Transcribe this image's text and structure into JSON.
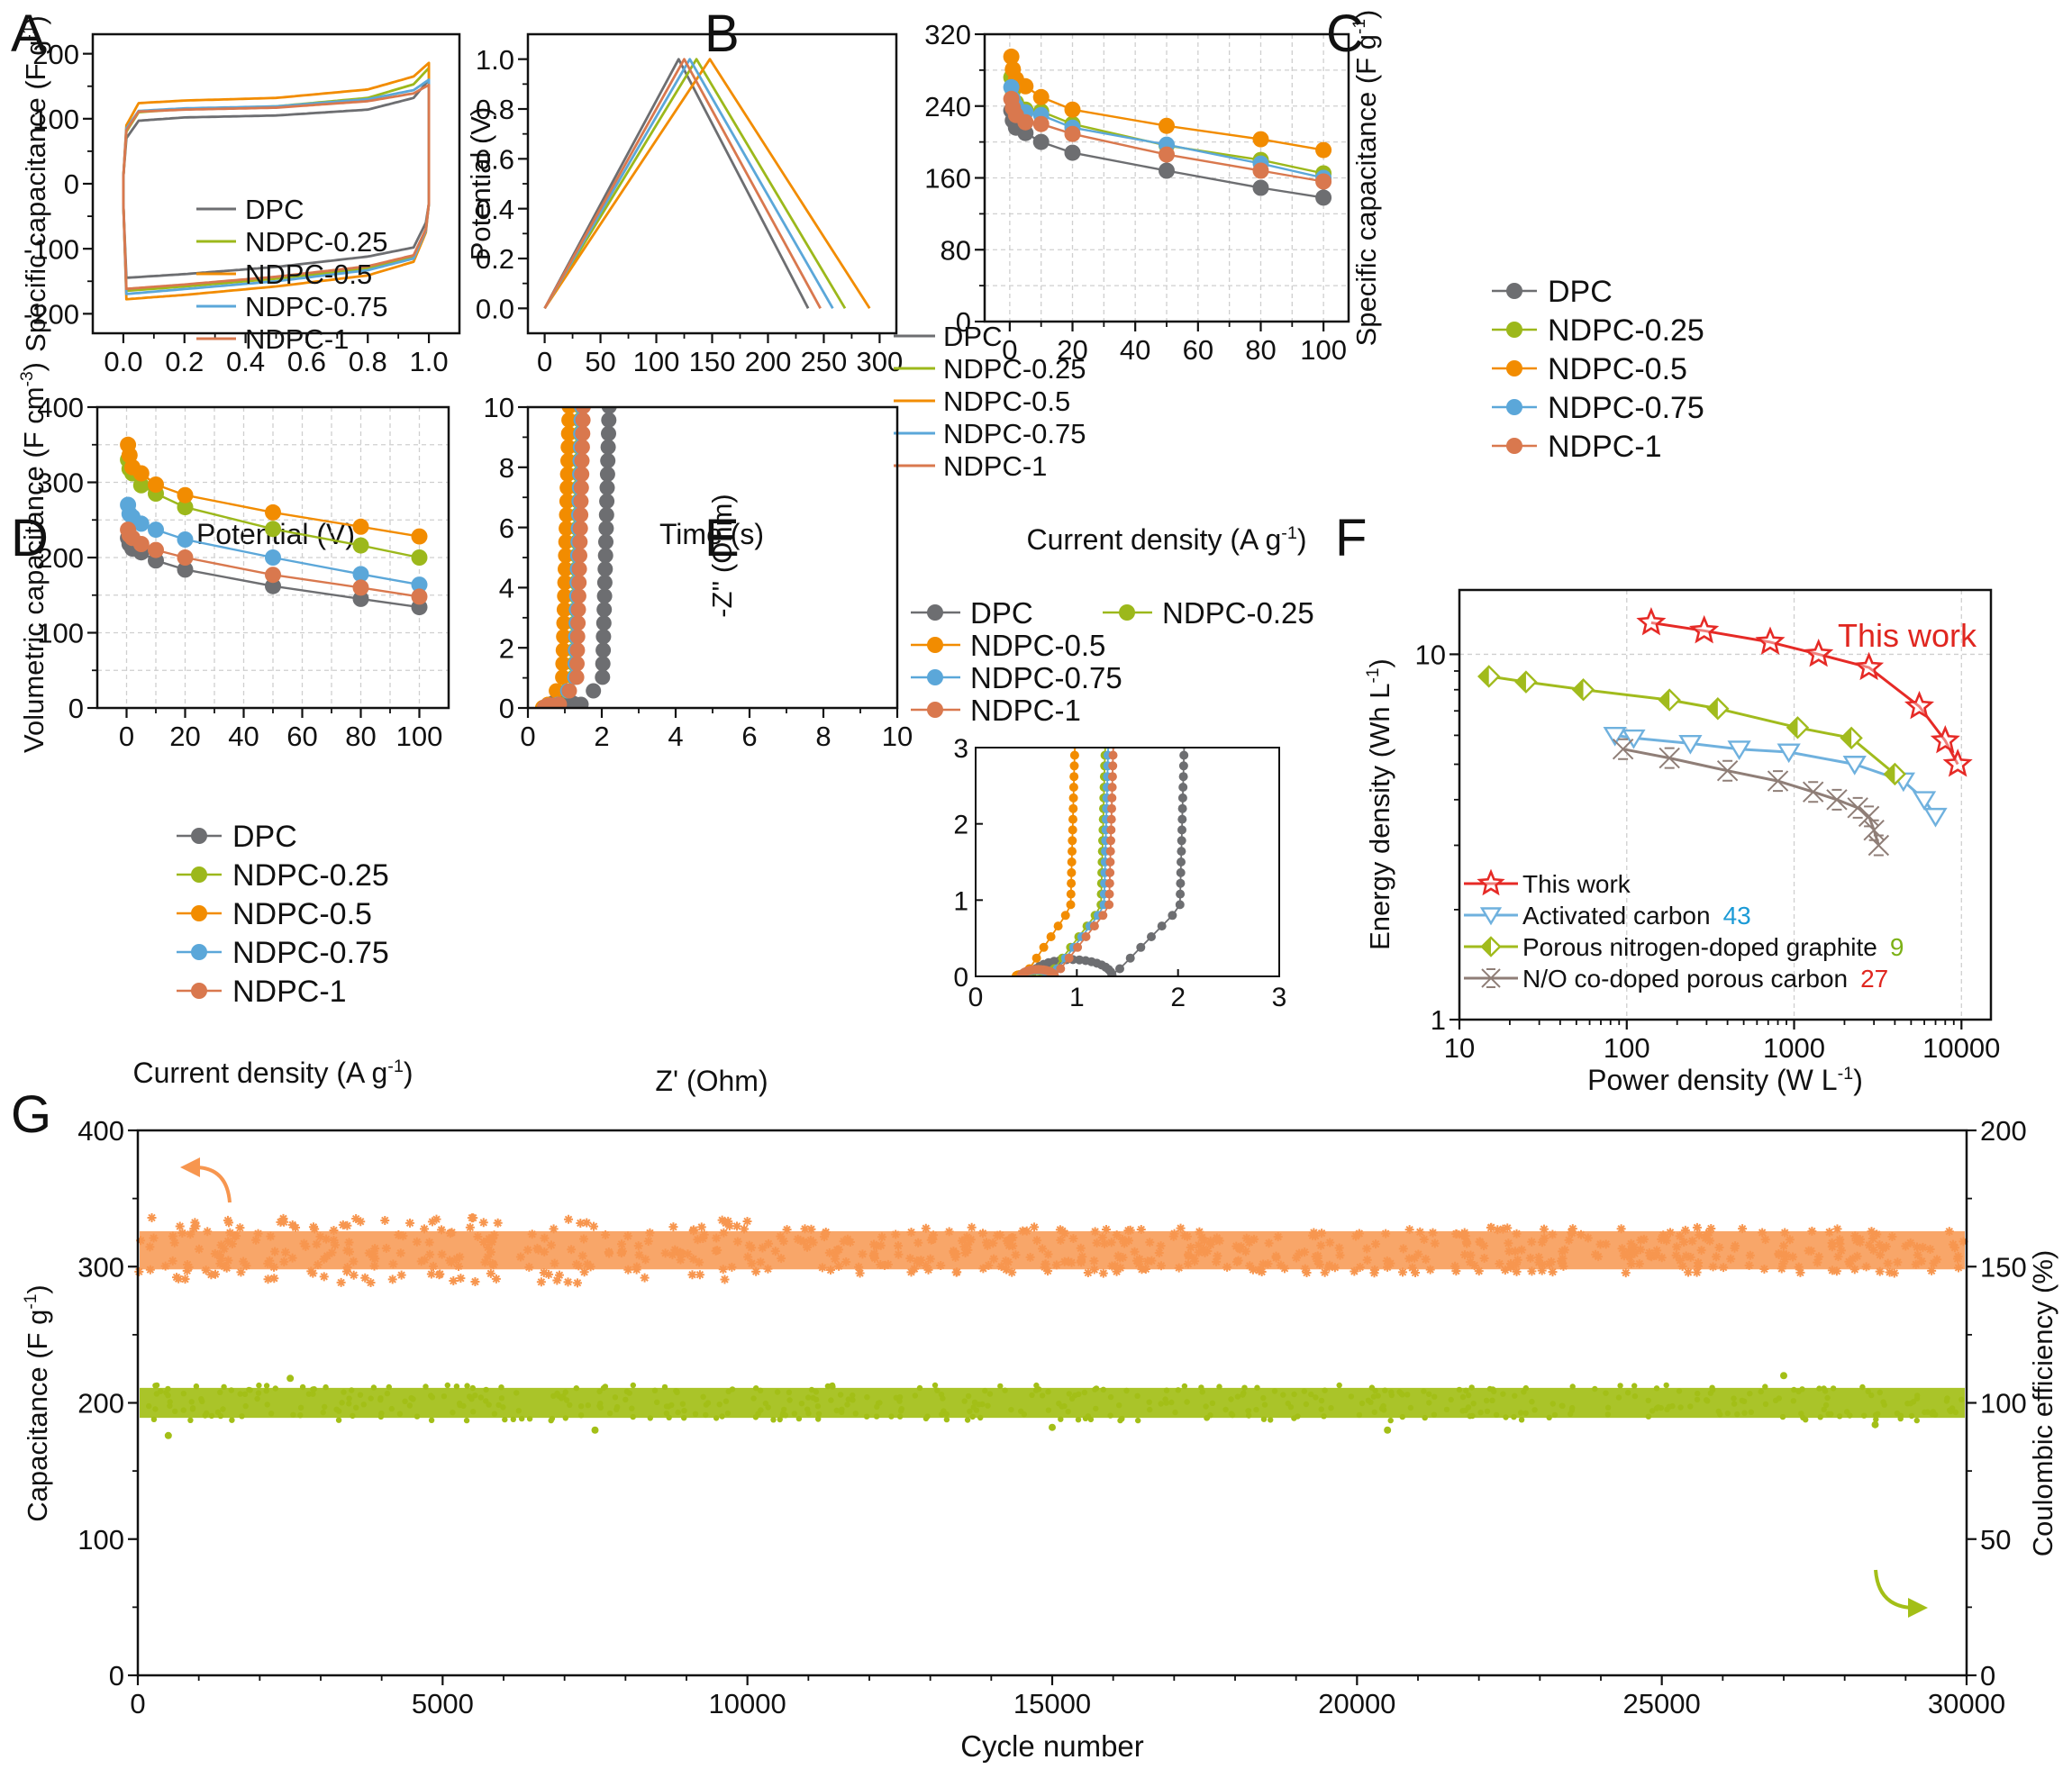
{
  "figure": {
    "colors": {
      "DPC": "#6d6e71",
      "NDPC-0.25": "#9cb81b",
      "NDPC-0.5": "#f28c00",
      "NDPC-0.75": "#5ba7d9",
      "NDPC-1": "#d9784e",
      "this_work": "#e62a26",
      "activated": "#6fb1de",
      "porous_ng": "#a1bb1d",
      "no_codoped": "#8f7e77",
      "cap_series": "#f7964f",
      "ce_series": "#a3bf17",
      "ref_blue": "#1b9ad6",
      "ref_green": "#7cb116",
      "ref_red": "#e0261f"
    }
  },
  "chart_data": [
    {
      "panel": "A",
      "type": "line",
      "xlabel": "Potential (V)",
      "ylabel": "Specific capacitance (F g",
      "ylabel_sup": "-1",
      "ylabel_end": ")",
      "xlim": [
        -0.1,
        1.1
      ],
      "ylim": [
        -230,
        230
      ],
      "xticks": [
        "0.0",
        "0.2",
        "0.4",
        "0.6",
        "0.8",
        "1.0"
      ],
      "yticks": [
        "-200",
        "-100",
        "0",
        "100",
        "200"
      ],
      "legend": [
        "DPC",
        "NDPC-0.25",
        "NDPC-0.5",
        "NDPC-0.75",
        "NDPC-1"
      ],
      "series": [
        {
          "name": "DPC",
          "upper": [
            [
              0,
              10
            ],
            [
              0.01,
              70
            ],
            [
              0.05,
              97
            ],
            [
              0.2,
              102
            ],
            [
              0.5,
              105
            ],
            [
              0.8,
              114
            ],
            [
              0.95,
              132
            ],
            [
              1.0,
              160
            ]
          ],
          "lower": [
            [
              0,
              -145
            ],
            [
              0.2,
              -139
            ],
            [
              0.5,
              -128
            ],
            [
              0.8,
              -112
            ],
            [
              0.95,
              -98
            ],
            [
              0.99,
              -60
            ],
            [
              1.0,
              -30
            ]
          ]
        },
        {
          "name": "NDPC-0.25",
          "upper": [
            [
              0,
              10
            ],
            [
              0.01,
              80
            ],
            [
              0.05,
              110
            ],
            [
              0.2,
              115
            ],
            [
              0.5,
              119
            ],
            [
              0.8,
              132
            ],
            [
              0.95,
              153
            ],
            [
              1.0,
              178
            ]
          ],
          "lower": [
            [
              0,
              -165
            ],
            [
              0.2,
              -158
            ],
            [
              0.5,
              -146
            ],
            [
              0.8,
              -130
            ],
            [
              0.95,
              -113
            ],
            [
              0.99,
              -70
            ],
            [
              1.0,
              -30
            ]
          ]
        },
        {
          "name": "NDPC-0.5",
          "upper": [
            [
              0,
              10
            ],
            [
              0.01,
              90
            ],
            [
              0.05,
              124
            ],
            [
              0.2,
              128
            ],
            [
              0.5,
              132
            ],
            [
              0.8,
              145
            ],
            [
              0.95,
              165
            ],
            [
              1.0,
              186
            ]
          ],
          "lower": [
            [
              0,
              -178
            ],
            [
              0.2,
              -171
            ],
            [
              0.5,
              -158
            ],
            [
              0.8,
              -141
            ],
            [
              0.95,
              -120
            ],
            [
              0.99,
              -75
            ],
            [
              1.0,
              -30
            ]
          ]
        },
        {
          "name": "NDPC-0.75",
          "upper": [
            [
              0,
              10
            ],
            [
              0.01,
              85
            ],
            [
              0.05,
              112
            ],
            [
              0.2,
              116
            ],
            [
              0.5,
              119
            ],
            [
              0.8,
              130
            ],
            [
              0.95,
              144
            ],
            [
              1.0,
              160
            ]
          ],
          "lower": [
            [
              0,
              -170
            ],
            [
              0.2,
              -162
            ],
            [
              0.5,
              -150
            ],
            [
              0.8,
              -133
            ],
            [
              0.95,
              -115
            ],
            [
              0.99,
              -72
            ],
            [
              1.0,
              -30
            ]
          ]
        },
        {
          "name": "NDPC-1",
          "upper": [
            [
              0,
              10
            ],
            [
              0.01,
              82
            ],
            [
              0.05,
              111
            ],
            [
              0.2,
              114
            ],
            [
              0.5,
              117
            ],
            [
              0.8,
              127
            ],
            [
              0.95,
              139
            ],
            [
              1.0,
              152
            ]
          ],
          "lower": [
            [
              0,
              -162
            ],
            [
              0.2,
              -155
            ],
            [
              0.5,
              -143
            ],
            [
              0.8,
              -127
            ],
            [
              0.95,
              -110
            ],
            [
              0.99,
              -70
            ],
            [
              1.0,
              -30
            ]
          ]
        }
      ]
    },
    {
      "panel": "B",
      "type": "line",
      "xlabel": "Time (s)",
      "ylabel": "Potential (V)",
      "xlim": [
        -15,
        315
      ],
      "ylim": [
        -0.1,
        1.1
      ],
      "xticks": [
        "0",
        "50",
        "100",
        "150",
        "200",
        "250",
        "300"
      ],
      "yticks": [
        "0.0",
        "0.2",
        "0.4",
        "0.6",
        "0.8",
        "1.0"
      ],
      "legend": [
        "DPC",
        "NDPC-0.25",
        "NDPC-0.5",
        "NDPC-0.75",
        "NDPC-1"
      ],
      "series": [
        {
          "name": "DPC",
          "peak": 120,
          "end": 236
        },
        {
          "name": "NDPC-0.25",
          "peak": 136,
          "end": 269
        },
        {
          "name": "NDPC-0.5",
          "peak": 148,
          "end": 291
        },
        {
          "name": "NDPC-0.75",
          "peak": 130,
          "end": 258
        },
        {
          "name": "NDPC-1",
          "peak": 125,
          "end": 247
        }
      ]
    },
    {
      "panel": "C",
      "type": "line",
      "xlabel": "Current density (A g",
      "xlabel_sup": "-1",
      "xlabel_end": ")",
      "ylabel": "Specific capacitance (F g",
      "ylabel_sup": "-1",
      "ylabel_end": ")",
      "xlim": [
        -8,
        108
      ],
      "ylim": [
        0,
        320
      ],
      "xticks": [
        "0",
        "20",
        "40",
        "60",
        "80",
        "100"
      ],
      "yticks": [
        "0",
        "80",
        "160",
        "240",
        "320"
      ],
      "x": [
        0.5,
        1,
        2,
        5,
        10,
        20,
        50,
        80,
        100
      ],
      "legend": [
        "DPC",
        "NDPC-0.25",
        "NDPC-0.5",
        "NDPC-0.75",
        "NDPC-1"
      ],
      "series": [
        {
          "name": "DPC",
          "values": [
            235,
            224,
            216,
            210,
            200,
            188,
            168,
            149,
            138
          ]
        },
        {
          "name": "NDPC-0.25",
          "values": [
            272,
            257,
            244,
            236,
            234,
            220,
            196,
            180,
            165
          ]
        },
        {
          "name": "NDPC-0.5",
          "values": [
            295,
            281,
            270,
            262,
            250,
            236,
            218,
            203,
            191
          ]
        },
        {
          "name": "NDPC-0.75",
          "values": [
            261,
            248,
            240,
            233,
            230,
            216,
            197,
            176,
            160
          ]
        },
        {
          "name": "NDPC-1",
          "values": [
            248,
            238,
            230,
            222,
            220,
            209,
            186,
            168,
            156
          ]
        }
      ]
    },
    {
      "panel": "D",
      "type": "line",
      "xlabel": "Current density (A g",
      "xlabel_sup": "-1",
      "xlabel_end": ")",
      "ylabel": "Volumetric capacitance (F cm",
      "ylabel_sup": "-3",
      "ylabel_end": ")",
      "xlim": [
        -10,
        110
      ],
      "ylim": [
        0,
        400
      ],
      "xticks": [
        "0",
        "20",
        "40",
        "60",
        "80",
        "100"
      ],
      "yticks": [
        "0",
        "100",
        "200",
        "300",
        "400"
      ],
      "x": [
        0.5,
        1,
        2,
        5,
        10,
        20,
        50,
        80,
        100
      ],
      "legend": [
        "DPC",
        "NDPC-0.25",
        "NDPC-0.5",
        "NDPC-0.75",
        "NDPC-1"
      ],
      "series": [
        {
          "name": "DPC",
          "values": [
            226,
            218,
            212,
            207,
            196,
            184,
            162,
            145,
            134
          ]
        },
        {
          "name": "NDPC-0.25",
          "values": [
            330,
            318,
            312,
            296,
            285,
            267,
            238,
            216,
            200
          ]
        },
        {
          "name": "NDPC-0.5",
          "values": [
            350,
            336,
            320,
            312,
            297,
            283,
            260,
            241,
            228
          ]
        },
        {
          "name": "NDPC-0.75",
          "values": [
            270,
            258,
            254,
            245,
            237,
            224,
            200,
            178,
            164
          ]
        },
        {
          "name": "NDPC-1",
          "values": [
            237,
            230,
            226,
            218,
            210,
            200,
            177,
            160,
            148
          ]
        }
      ]
    },
    {
      "panel": "E",
      "type": "scatter",
      "xlabel": "Z' (Ohm)",
      "ylabel": "-Z'' (Ohm)",
      "xlim": [
        0,
        10
      ],
      "ylim": [
        0,
        10
      ],
      "xticks": [
        "0",
        "2",
        "4",
        "6",
        "8",
        "10"
      ],
      "yticks": [
        "0",
        "2",
        "4",
        "6",
        "8",
        "10"
      ],
      "inset": {
        "xlim": [
          0,
          3
        ],
        "ylim": [
          0,
          3
        ],
        "xticks": [
          "0",
          "1",
          "2",
          "3"
        ],
        "yticks": [
          "0",
          "1",
          "2",
          "3"
        ]
      },
      "legend": [
        "DPC",
        "NDPC-0.25",
        "NDPC-0.5",
        "NDPC-0.75",
        "NDPC-1"
      ],
      "series": [
        {
          "name": "DPC",
          "r0": 0.55,
          "rct": 1.35,
          "vert": 2.0
        },
        {
          "name": "NDPC-0.25",
          "r0": 0.45,
          "rct": 0.72,
          "vert": 1.22
        },
        {
          "name": "NDPC-0.5",
          "r0": 0.4,
          "rct": 0.48,
          "vert": 0.92
        },
        {
          "name": "NDPC-0.75",
          "r0": 0.45,
          "rct": 0.75,
          "vert": 1.25
        },
        {
          "name": "NDPC-1",
          "r0": 0.45,
          "rct": 0.78,
          "vert": 1.3
        }
      ]
    },
    {
      "panel": "F",
      "type": "line",
      "scale": "log-log",
      "xlabel": "Power density (W L",
      "xlabel_sup": "-1",
      "xlabel_end": ")",
      "ylabel": "Energy density (Wh L",
      "ylabel_sup": "-1",
      "ylabel_end": ")",
      "xlim": [
        10,
        15000
      ],
      "ylim": [
        1,
        15
      ],
      "xticks": [
        "10",
        "100",
        "1000",
        "10000"
      ],
      "yticks": [
        "1",
        "10"
      ],
      "annotation": "This work",
      "legend": [
        "This work",
        "Activated carbon",
        "Porous nitrogen-doped graphite",
        "N/O co-doped porous carbon"
      ],
      "refs": [
        "",
        "43",
        "9",
        "27"
      ],
      "series": [
        {
          "name": "This work",
          "points": [
            [
              140,
              12.2
            ],
            [
              290,
              11.6
            ],
            [
              720,
              10.8
            ],
            [
              1400,
              10.0
            ],
            [
              2800,
              9.2
            ],
            [
              5600,
              7.2
            ],
            [
              8000,
              5.8
            ],
            [
              9500,
              5.0
            ]
          ]
        },
        {
          "name": "Activated carbon",
          "points": [
            [
              85,
              6.0
            ],
            [
              110,
              5.9
            ],
            [
              240,
              5.7
            ],
            [
              470,
              5.5
            ],
            [
              930,
              5.4
            ],
            [
              2300,
              5.0
            ],
            [
              4500,
              4.5
            ],
            [
              6000,
              4.0
            ],
            [
              7000,
              3.6
            ]
          ]
        },
        {
          "name": "Porous nitrogen-doped graphite",
          "points": [
            [
              15,
              8.7
            ],
            [
              25,
              8.4
            ],
            [
              55,
              8.0
            ],
            [
              180,
              7.5
            ],
            [
              350,
              7.1
            ],
            [
              1050,
              6.3
            ],
            [
              2200,
              5.9
            ],
            [
              4000,
              4.7
            ]
          ]
        },
        {
          "name": "N/O co-doped porous carbon",
          "points": [
            [
              95,
              5.5
            ],
            [
              180,
              5.2
            ],
            [
              400,
              4.8
            ],
            [
              800,
              4.5
            ],
            [
              1300,
              4.2
            ],
            [
              1800,
              4.0
            ],
            [
              2400,
              3.8
            ],
            [
              2800,
              3.6
            ],
            [
              3000,
              3.3
            ],
            [
              3200,
              3.0
            ]
          ]
        }
      ]
    },
    {
      "panel": "G",
      "type": "scatter",
      "xlabel": "Cycle number",
      "ylabel": "Capacitance (F g",
      "ylabel_sup": "-1",
      "ylabel_end": ")",
      "ylabel_right": "Coulombic efficiency (%)",
      "xlim": [
        0,
        30000
      ],
      "ylim": [
        0,
        400
      ],
      "ylim_right": [
        0,
        200
      ],
      "xticks": [
        "0",
        "5000",
        "10000",
        "15000",
        "20000",
        "25000",
        "30000"
      ],
      "yticks": [
        "0",
        "100",
        "200",
        "300",
        "400"
      ],
      "yticks_right": [
        "0",
        "50",
        "100",
        "150",
        "200"
      ],
      "series": [
        {
          "name": "Capacitance",
          "axis": "left",
          "mean": 312,
          "range": [
            282,
            340
          ]
        },
        {
          "name": "Coulombic efficiency",
          "axis": "right",
          "mean": 100,
          "range": [
            88,
            110
          ]
        }
      ]
    }
  ]
}
